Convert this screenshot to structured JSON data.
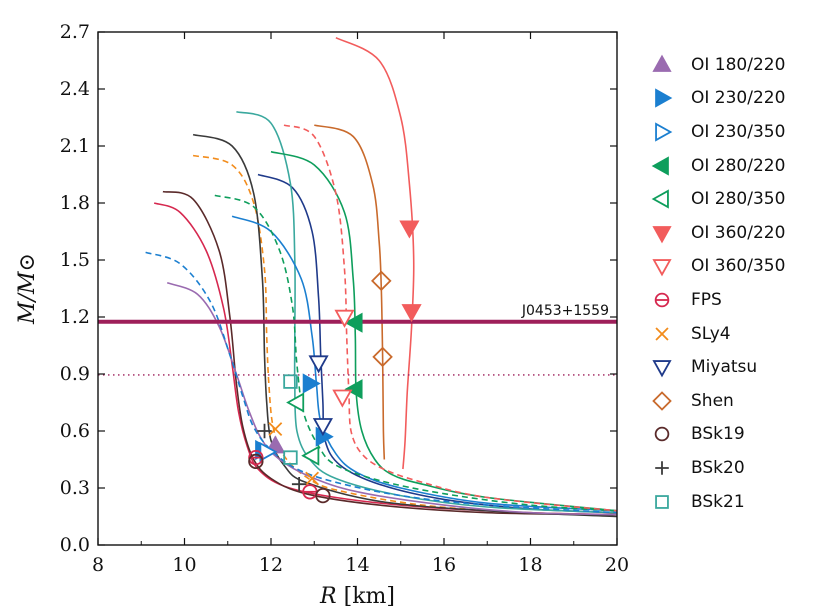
{
  "chart_data": {
    "type": "line",
    "xlabel_var": "R",
    "xlabel_unit": "[km]",
    "ylabel": "M/M⊙",
    "xlim": [
      8,
      20
    ],
    "ylim": [
      0,
      2.7
    ],
    "x_ticks": [
      "8",
      "10",
      "12",
      "14",
      "16",
      "18",
      "20"
    ],
    "y_ticks": [
      "0.0",
      "0.3",
      "0.6",
      "0.9",
      "1.2",
      "1.5",
      "1.8",
      "2.1",
      "2.4",
      "2.7"
    ],
    "reference_line": {
      "label": "J0453+1559",
      "mass": 1.175,
      "color": "#9e1f5a"
    },
    "dotted_line": {
      "mass": 0.895,
      "color": "#9e1f5a"
    },
    "series": [
      {
        "name": "FPS",
        "color": "#d6284f",
        "dash": "solid",
        "points": [
          [
            9.3,
            1.8
          ],
          [
            9.9,
            1.75
          ],
          [
            10.5,
            1.55
          ],
          [
            10.9,
            1.25
          ],
          [
            11.1,
            0.95
          ],
          [
            11.25,
            0.7
          ],
          [
            11.45,
            0.52
          ],
          [
            11.7,
            0.4
          ],
          [
            12.3,
            0.31
          ],
          [
            13.5,
            0.25
          ],
          [
            15.5,
            0.2
          ],
          [
            18,
            0.17
          ],
          [
            20,
            0.16
          ]
        ]
      },
      {
        "name": "SLy4",
        "color": "#f28c1c",
        "dash": "dashed",
        "points": [
          [
            10.2,
            2.05
          ],
          [
            11.1,
            2.0
          ],
          [
            11.6,
            1.8
          ],
          [
            11.85,
            1.45
          ],
          [
            11.9,
            1.1
          ],
          [
            11.95,
            0.85
          ],
          [
            12.05,
            0.62
          ],
          [
            12.3,
            0.47
          ],
          [
            12.8,
            0.36
          ],
          [
            13.5,
            0.29
          ],
          [
            15.5,
            0.21
          ],
          [
            18,
            0.17
          ],
          [
            20,
            0.16
          ]
        ]
      },
      {
        "name": "Miyatsu",
        "color": "#1f3a8a",
        "dash": "solid",
        "points": [
          [
            11.7,
            1.95
          ],
          [
            12.5,
            1.88
          ],
          [
            12.95,
            1.65
          ],
          [
            13.1,
            1.3
          ],
          [
            13.15,
            1.0
          ],
          [
            13.2,
            0.75
          ],
          [
            13.25,
            0.55
          ],
          [
            13.6,
            0.42
          ],
          [
            14.5,
            0.32
          ],
          [
            16,
            0.24
          ],
          [
            18,
            0.19
          ],
          [
            20,
            0.17
          ]
        ]
      },
      {
        "name": "Shen",
        "color": "#c96a2c",
        "dash": "solid",
        "points": [
          [
            13.0,
            2.21
          ],
          [
            13.9,
            2.15
          ],
          [
            14.35,
            1.9
          ],
          [
            14.5,
            1.6
          ],
          [
            14.55,
            1.35
          ],
          [
            14.58,
            1.0
          ],
          [
            14.6,
            0.6
          ],
          [
            14.62,
            0.45
          ]
        ]
      },
      {
        "name": "BSk19",
        "color": "#5a2a2a",
        "dash": "solid",
        "points": [
          [
            9.5,
            1.86
          ],
          [
            10.2,
            1.82
          ],
          [
            10.8,
            1.55
          ],
          [
            11.05,
            1.2
          ],
          [
            11.2,
            0.85
          ],
          [
            11.35,
            0.62
          ],
          [
            11.6,
            0.45
          ],
          [
            12.0,
            0.35
          ],
          [
            12.8,
            0.27
          ],
          [
            14.5,
            0.21
          ],
          [
            17,
            0.17
          ],
          [
            20,
            0.16
          ]
        ]
      },
      {
        "name": "BSk20",
        "color": "#3a3a3a",
        "dash": "solid",
        "points": [
          [
            10.2,
            2.16
          ],
          [
            11.1,
            2.1
          ],
          [
            11.6,
            1.85
          ],
          [
            11.8,
            1.4
          ],
          [
            11.85,
            1.0
          ],
          [
            11.9,
            0.75
          ],
          [
            12.0,
            0.55
          ],
          [
            12.3,
            0.42
          ],
          [
            12.8,
            0.33
          ],
          [
            14.5,
            0.23
          ],
          [
            17,
            0.18
          ],
          [
            20,
            0.15
          ]
        ]
      },
      {
        "name": "BSk21",
        "color": "#3aa89e",
        "dash": "solid",
        "points": [
          [
            11.2,
            2.28
          ],
          [
            12.0,
            2.22
          ],
          [
            12.45,
            1.9
          ],
          [
            12.55,
            1.5
          ],
          [
            12.55,
            1.1
          ],
          [
            12.55,
            0.85
          ],
          [
            12.6,
            0.6
          ],
          [
            12.9,
            0.45
          ],
          [
            13.5,
            0.35
          ],
          [
            15,
            0.26
          ],
          [
            17,
            0.2
          ],
          [
            20,
            0.17
          ]
        ]
      },
      {
        "name": "OI 180/220",
        "color": "#9a6bb0",
        "dash": "solid",
        "points": [
          [
            9.6,
            1.38
          ],
          [
            10.3,
            1.32
          ],
          [
            10.8,
            1.15
          ],
          [
            11.2,
            0.9
          ],
          [
            11.5,
            0.7
          ],
          [
            11.8,
            0.55
          ],
          [
            12.2,
            0.45
          ],
          [
            12.9,
            0.36
          ],
          [
            14,
            0.28
          ],
          [
            16,
            0.21
          ],
          [
            18,
            0.17
          ],
          [
            20,
            0.16
          ]
        ]
      },
      {
        "name": "OI 230/220",
        "color": "#1b7fd0",
        "dash": "solid",
        "points": [
          [
            11.1,
            1.73
          ],
          [
            12.0,
            1.65
          ],
          [
            12.7,
            1.4
          ],
          [
            12.95,
            1.1
          ],
          [
            13.05,
            0.85
          ],
          [
            13.15,
            0.65
          ],
          [
            13.5,
            0.48
          ],
          [
            14.0,
            0.38
          ],
          [
            15,
            0.3
          ],
          [
            17,
            0.22
          ],
          [
            20,
            0.18
          ]
        ]
      },
      {
        "name": "OI 230/350",
        "color": "#1b7fd0",
        "dash": "dashed",
        "points": [
          [
            9.1,
            1.54
          ],
          [
            9.9,
            1.48
          ],
          [
            10.6,
            1.28
          ],
          [
            11.05,
            1.0
          ],
          [
            11.35,
            0.78
          ],
          [
            11.6,
            0.62
          ],
          [
            12.0,
            0.5
          ],
          [
            12.6,
            0.4
          ],
          [
            13.5,
            0.33
          ],
          [
            15,
            0.26
          ],
          [
            17,
            0.21
          ],
          [
            20,
            0.17
          ]
        ]
      },
      {
        "name": "OI 280/220",
        "color": "#0e9e5c",
        "dash": "solid",
        "points": [
          [
            12.0,
            2.07
          ],
          [
            13.0,
            2.0
          ],
          [
            13.7,
            1.75
          ],
          [
            13.9,
            1.4
          ],
          [
            13.95,
            1.1
          ],
          [
            13.97,
            0.8
          ],
          [
            14.1,
            0.6
          ],
          [
            14.4,
            0.45
          ],
          [
            14.8,
            0.37
          ],
          [
            15.5,
            0.32
          ],
          [
            17,
            0.25
          ],
          [
            20,
            0.18
          ]
        ]
      },
      {
        "name": "OI 280/350",
        "color": "#0e9e5c",
        "dash": "dashed",
        "points": [
          [
            10.7,
            1.84
          ],
          [
            11.6,
            1.78
          ],
          [
            12.2,
            1.55
          ],
          [
            12.5,
            1.25
          ],
          [
            12.6,
            0.95
          ],
          [
            12.75,
            0.7
          ],
          [
            13.1,
            0.52
          ],
          [
            13.5,
            0.42
          ],
          [
            14.5,
            0.34
          ],
          [
            16,
            0.27
          ],
          [
            18,
            0.21
          ],
          [
            20,
            0.18
          ]
        ]
      },
      {
        "name": "OI 360/220",
        "color": "#f25c5c",
        "dash": "solid",
        "points": [
          [
            13.5,
            2.67
          ],
          [
            14.5,
            2.55
          ],
          [
            15.0,
            2.25
          ],
          [
            15.2,
            1.9
          ],
          [
            15.3,
            1.5
          ],
          [
            15.25,
            1.15
          ],
          [
            15.15,
            0.8
          ],
          [
            15.1,
            0.55
          ],
          [
            15.05,
            0.4
          ]
        ]
      },
      {
        "name": "OI 360/350",
        "color": "#f25c5c",
        "dash": "dashed",
        "points": [
          [
            12.3,
            2.21
          ],
          [
            13.0,
            2.15
          ],
          [
            13.5,
            1.85
          ],
          [
            13.7,
            1.45
          ],
          [
            13.75,
            1.1
          ],
          [
            13.8,
            0.8
          ],
          [
            13.85,
            0.6
          ],
          [
            14.1,
            0.48
          ],
          [
            14.6,
            0.4
          ],
          [
            15.5,
            0.33
          ],
          [
            17,
            0.25
          ],
          [
            20,
            0.18
          ]
        ]
      }
    ],
    "markers": [
      {
        "series": "OI 180/220",
        "shape": "triangle-up",
        "filled": true,
        "color": "#9a6bb0",
        "points": [
          [
            12.1,
            0.52
          ]
        ]
      },
      {
        "series": "OI 230/220",
        "shape": "triangle-right",
        "filled": true,
        "color": "#1b7fd0",
        "points": [
          [
            12.9,
            0.85
          ],
          [
            13.2,
            0.57
          ],
          [
            11.8,
            0.5
          ]
        ]
      },
      {
        "series": "OI 230/350",
        "shape": "triangle-right",
        "filled": false,
        "color": "#1b7fd0",
        "points": [
          [
            11.9,
            0.49
          ]
        ]
      },
      {
        "series": "OI 280/220",
        "shape": "triangle-left",
        "filled": true,
        "color": "#0e9e5c",
        "points": [
          [
            13.95,
            1.17
          ],
          [
            13.95,
            0.82
          ]
        ]
      },
      {
        "series": "OI 280/350",
        "shape": "triangle-left",
        "filled": false,
        "color": "#0e9e5c",
        "points": [
          [
            12.6,
            0.75
          ],
          [
            12.95,
            0.47
          ]
        ]
      },
      {
        "series": "OI 360/220",
        "shape": "triangle-down",
        "filled": true,
        "color": "#f25c5c",
        "points": [
          [
            15.2,
            1.67
          ],
          [
            15.25,
            1.23
          ]
        ]
      },
      {
        "series": "OI 360/350",
        "shape": "triangle-down",
        "filled": false,
        "color": "#f25c5c",
        "points": [
          [
            13.7,
            1.2
          ],
          [
            13.65,
            0.78
          ]
        ]
      },
      {
        "series": "FPS",
        "shape": "circle-bar",
        "filled": false,
        "color": "#d6284f",
        "points": [
          [
            11.65,
            0.46
          ],
          [
            12.9,
            0.28
          ]
        ]
      },
      {
        "series": "SLy4",
        "shape": "x",
        "filled": false,
        "color": "#f28c1c",
        "points": [
          [
            12.1,
            0.61
          ],
          [
            12.95,
            0.35
          ]
        ]
      },
      {
        "series": "Miyatsu",
        "shape": "triangle-down",
        "filled": false,
        "color": "#1f3a8a",
        "points": [
          [
            13.1,
            0.96
          ],
          [
            13.2,
            0.63
          ]
        ]
      },
      {
        "series": "Shen",
        "shape": "diamond",
        "filled": false,
        "color": "#c96a2c",
        "points": [
          [
            14.55,
            1.39
          ],
          [
            14.58,
            0.99
          ]
        ]
      },
      {
        "series": "BSk19",
        "shape": "circle",
        "filled": false,
        "color": "#5a2a2a",
        "points": [
          [
            11.65,
            0.44
          ],
          [
            13.2,
            0.26
          ]
        ]
      },
      {
        "series": "BSk20",
        "shape": "plus",
        "filled": false,
        "color": "#3a3a3a",
        "points": [
          [
            11.85,
            0.6
          ],
          [
            12.65,
            0.32
          ]
        ]
      },
      {
        "series": "BSk21",
        "shape": "square",
        "filled": false,
        "color": "#3aa89e",
        "points": [
          [
            12.45,
            0.86
          ],
          [
            12.45,
            0.46
          ]
        ]
      }
    ],
    "legend": [
      {
        "label": "OI 180/220",
        "shape": "triangle-up",
        "filled": true,
        "color": "#9a6bb0"
      },
      {
        "label": "OI 230/220",
        "shape": "triangle-right",
        "filled": true,
        "color": "#1b7fd0"
      },
      {
        "label": "OI 230/350",
        "shape": "triangle-right",
        "filled": false,
        "color": "#1b7fd0"
      },
      {
        "label": "OI 280/220",
        "shape": "triangle-left",
        "filled": true,
        "color": "#0e9e5c"
      },
      {
        "label": "OI 280/350",
        "shape": "triangle-left",
        "filled": false,
        "color": "#0e9e5c"
      },
      {
        "label": "OI 360/220",
        "shape": "triangle-down",
        "filled": true,
        "color": "#f25c5c"
      },
      {
        "label": "OI 360/350",
        "shape": "triangle-down",
        "filled": false,
        "color": "#f25c5c"
      },
      {
        "label": "FPS",
        "shape": "circle-bar",
        "filled": false,
        "color": "#d6284f"
      },
      {
        "label": "SLy4",
        "shape": "x",
        "filled": false,
        "color": "#f28c1c"
      },
      {
        "label": "Miyatsu",
        "shape": "triangle-down",
        "filled": false,
        "color": "#1f3a8a"
      },
      {
        "label": "Shen",
        "shape": "diamond",
        "filled": false,
        "color": "#c96a2c"
      },
      {
        "label": "BSk19",
        "shape": "circle",
        "filled": false,
        "color": "#5a2a2a"
      },
      {
        "label": "BSk20",
        "shape": "plus",
        "filled": false,
        "color": "#3a3a3a"
      },
      {
        "label": "BSk21",
        "shape": "square",
        "filled": false,
        "color": "#3aa89e"
      }
    ]
  }
}
